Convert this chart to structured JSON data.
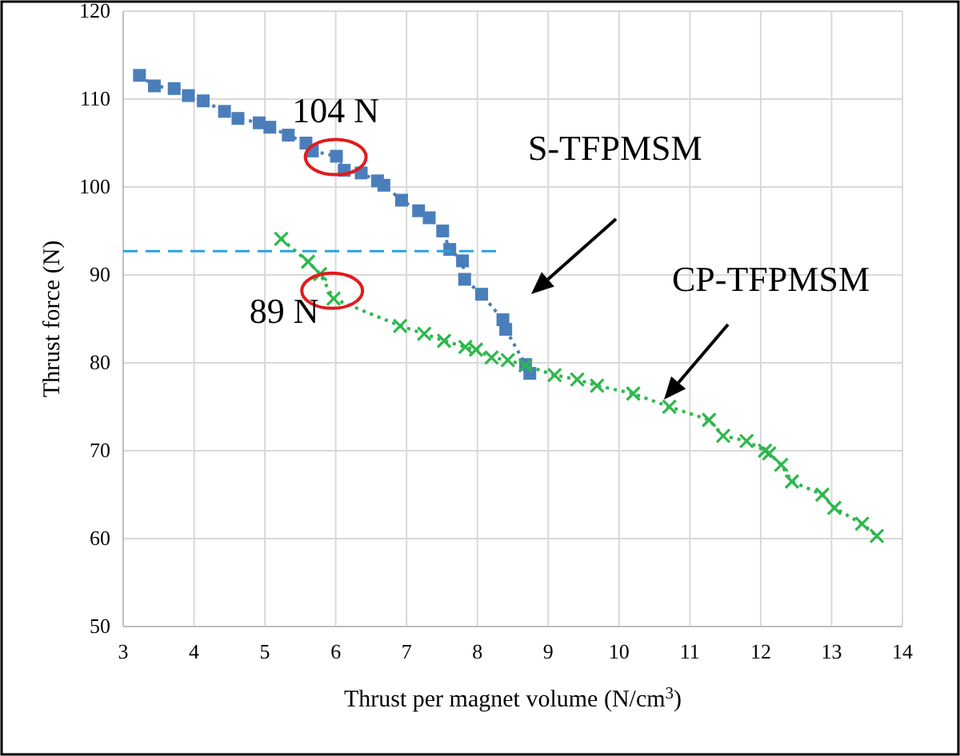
{
  "chart_data": {
    "type": "line",
    "xlabel": "Thrust per magnet volume (N/cm$^{3}$)",
    "ylabel": "Thrust force (N)",
    "xlim": [
      3,
      14
    ],
    "xticks": [
      3,
      4,
      5,
      6,
      7,
      8,
      9,
      10,
      11,
      12,
      13,
      14
    ],
    "ylim": [
      50,
      120
    ],
    "yticks": [
      50,
      60,
      70,
      80,
      90,
      100,
      110,
      120
    ],
    "grid": true,
    "series": [
      {
        "name": "S-TFPMSM",
        "color": "#4a7ebb",
        "marker": "square",
        "line_style": "dotted",
        "x": [
          3.23,
          3.44,
          3.72,
          3.92,
          4.13,
          4.43,
          4.62,
          4.92,
          5.07,
          5.33,
          5.58,
          5.67,
          6.01,
          6.12,
          6.36,
          6.59,
          6.68,
          6.93,
          7.17,
          7.32,
          7.51,
          7.61,
          7.79,
          7.82,
          8.06,
          8.36,
          8.4,
          8.68,
          8.74
        ],
        "values": [
          112.7,
          111.5,
          111.2,
          110.4,
          109.8,
          108.6,
          107.8,
          107.3,
          106.8,
          105.9,
          105,
          104.1,
          103.5,
          101.9,
          101.6,
          100.7,
          100.2,
          98.5,
          97.3,
          96.5,
          95,
          92.9,
          91.6,
          89.5,
          87.8,
          84.9,
          83.8,
          79.8,
          78.8
        ]
      },
      {
        "name": "CP-TFPMSM",
        "color": "#2db84d",
        "marker": "cross",
        "line_style": "dotted",
        "x": [
          5.23,
          5.61,
          5.78,
          5.97,
          6.91,
          7.25,
          7.53,
          7.83,
          7.98,
          8.2,
          8.43,
          8.68,
          9.09,
          9.41,
          9.69,
          10.2,
          10.71,
          11.27,
          11.47,
          11.8,
          12.06,
          12.12,
          12.29,
          12.44,
          12.87,
          13.04,
          13.43,
          13.64
        ],
        "values": [
          94.1,
          91.5,
          90.1,
          87.3,
          84.2,
          83.3,
          82.5,
          81.8,
          81.5,
          80.6,
          80.3,
          79.7,
          78.6,
          78.1,
          77.4,
          76.5,
          75,
          73.5,
          71.7,
          71.1,
          70,
          69.7,
          68.4,
          66.5,
          65,
          63.5,
          61.7,
          60.3
        ]
      },
      {
        "type": "line",
        "color": "#29a3e0",
        "marker": "none",
        "line_style": "dashed",
        "x": [
          3,
          8.3
        ],
        "values": [
          92.7,
          92.7
        ]
      }
    ],
    "annotations": [
      {
        "text": "104 N",
        "x": 6.0,
        "y": 103.4
      },
      {
        "text": "89 N",
        "x": 5.95,
        "y": 88.2
      }
    ]
  }
}
